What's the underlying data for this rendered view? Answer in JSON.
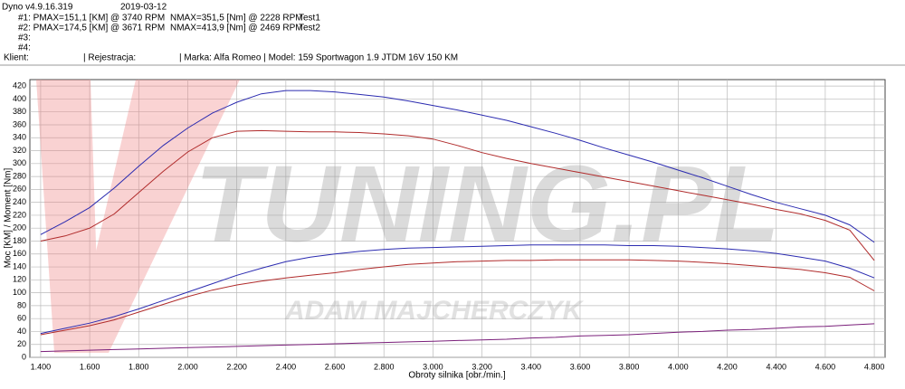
{
  "header": {
    "software": "Dyno v4.9.16.319",
    "date": "2019-03-12",
    "tests": [
      {
        "label": "#1: PMAX=151,1 [KM] @ 3740 RPM",
        "torque": "NMAX=351,5 [Nm] @ 2228 RPM",
        "name": "Test1"
      },
      {
        "label": "#2: PMAX=174,5 [KM] @ 3671 RPM",
        "torque": "NMAX=413,9 [Nm] @ 2469 RPM",
        "name": "Test2"
      },
      {
        "label": "#3:"
      },
      {
        "label": "#4:"
      }
    ],
    "client": "Klient:",
    "registration": "| Rejestracja:",
    "vehicle": "| Marka: Alfa Romeo | Model: 159 Sportwagon 1.9 JTDM 16V 150 KM"
  },
  "chart_data": {
    "type": "line",
    "watermark": [
      "TUNING.PL",
      "ADAM MAJCHERCZYK"
    ],
    "x_label": "Obroty silnika [obr./min.]",
    "y_label": "Moc [KM] / Moment [Nm]",
    "x": [
      1400,
      1500,
      1600,
      1700,
      1800,
      1900,
      2000,
      2100,
      2200,
      2300,
      2400,
      2500,
      2600,
      2700,
      2800,
      2900,
      3000,
      3100,
      3200,
      3300,
      3400,
      3500,
      3600,
      3700,
      3800,
      3900,
      4000,
      4100,
      4200,
      4300,
      4400,
      4500,
      4600,
      4700,
      4800
    ],
    "xlim": [
      1356,
      4844
    ],
    "xticks": [
      {
        "value": 1400,
        "label": "1.400"
      },
      {
        "value": 1600,
        "label": "1.600"
      },
      {
        "value": 1800,
        "label": "1.800"
      },
      {
        "value": 2000,
        "label": "2.000"
      },
      {
        "value": 2200,
        "label": "2.200"
      },
      {
        "value": 2400,
        "label": "2.400"
      },
      {
        "value": 2600,
        "label": "2.600"
      },
      {
        "value": 2800,
        "label": "2.800"
      },
      {
        "value": 3000,
        "label": "3.000"
      },
      {
        "value": 3200,
        "label": "3.200"
      },
      {
        "value": 3400,
        "label": "3.400"
      },
      {
        "value": 3600,
        "label": "3.600"
      },
      {
        "value": 3800,
        "label": "3.800"
      },
      {
        "value": 4000,
        "label": "4.000"
      },
      {
        "value": 4200,
        "label": "4.200"
      },
      {
        "value": 4400,
        "label": "4.400"
      },
      {
        "value": 4600,
        "label": "4.600"
      },
      {
        "value": 4800,
        "label": "4.800"
      }
    ],
    "ylim": [
      0,
      430
    ],
    "yticks": [
      0,
      20,
      40,
      60,
      80,
      100,
      120,
      140,
      160,
      180,
      200,
      220,
      240,
      260,
      280,
      300,
      320,
      340,
      360,
      380,
      400,
      420
    ],
    "grid": true,
    "series": [
      {
        "color": "#2b2bb0",
        "values": [
          190,
          210,
          232,
          262,
          296,
          328,
          355,
          378,
          395,
          408,
          413,
          413,
          411,
          407,
          403,
          397,
          390,
          383,
          375,
          367,
          357,
          347,
          336,
          324,
          313,
          302,
          290,
          278,
          265,
          252,
          240,
          230,
          220,
          205,
          178
        ]
      },
      {
        "color": "#b02b2b",
        "values": [
          180,
          188,
          200,
          222,
          255,
          288,
          318,
          340,
          350,
          351,
          350,
          349,
          349,
          348,
          346,
          343,
          338,
          328,
          317,
          308,
          300,
          293,
          286,
          279,
          272,
          265,
          258,
          251,
          244,
          237,
          229,
          222,
          212,
          197,
          150
        ]
      },
      {
        "color": "#2b2bb0",
        "values": [
          37,
          45,
          53,
          63,
          75,
          88,
          101,
          114,
          127,
          138,
          148,
          155,
          160,
          164,
          167,
          169,
          170,
          171,
          172,
          173,
          174,
          174,
          174,
          174,
          173,
          173,
          172,
          170,
          168,
          165,
          161,
          155,
          149,
          138,
          123
        ]
      },
      {
        "color": "#b02b2b",
        "values": [
          35,
          42,
          49,
          58,
          70,
          82,
          94,
          104,
          112,
          118,
          123,
          127,
          131,
          136,
          140,
          144,
          146,
          148,
          149,
          150,
          150,
          151,
          151,
          151,
          151,
          150,
          149,
          147,
          145,
          142,
          139,
          136,
          131,
          124,
          103
        ]
      },
      {
        "color": "#7a1f7a",
        "values": [
          9,
          10,
          11,
          12,
          13,
          14,
          15,
          16,
          17,
          18,
          19,
          20,
          21,
          22,
          23,
          24,
          25,
          26,
          27,
          28,
          30,
          31,
          33,
          34,
          35,
          37,
          39,
          40,
          42,
          43,
          45,
          47,
          48,
          50,
          52
        ]
      }
    ]
  }
}
